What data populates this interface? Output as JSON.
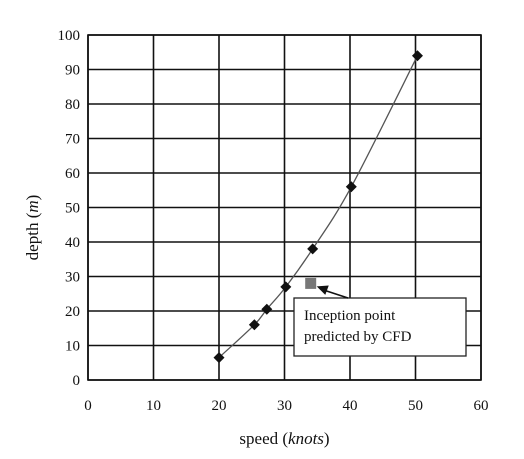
{
  "chart_data": {
    "type": "scatter",
    "title": "",
    "xlabel": {
      "prefix": "speed (",
      "italic": "knots",
      "suffix": ")"
    },
    "ylabel": {
      "prefix": "depth (",
      "italic": "m",
      "suffix": ")"
    },
    "xlim": [
      0,
      60
    ],
    "ylim": [
      0,
      100
    ],
    "xticks": [
      0,
      10,
      20,
      30,
      40,
      50,
      60
    ],
    "yticks": [
      0,
      10,
      20,
      30,
      40,
      50,
      60,
      70,
      80,
      90,
      100
    ],
    "grid": true,
    "series": [
      {
        "marker": "diamond",
        "color": "#111111",
        "line_color": "#555555",
        "x": [
          20,
          25.4,
          27.3,
          30.2,
          34.3,
          40.2,
          50.3
        ],
        "y": [
          6.5,
          16,
          20.5,
          27,
          38,
          56,
          94
        ]
      }
    ],
    "points": [
      {
        "name": "Inception point predicted by CFD",
        "marker": "square",
        "color": "#777777",
        "x": 34,
        "y": 28
      }
    ],
    "annotations": [
      {
        "lines": [
          "Inception point",
          "predicted by CFD"
        ],
        "target": {
          "x": 34,
          "y": 28
        },
        "placement": "lower-right of point"
      }
    ]
  }
}
